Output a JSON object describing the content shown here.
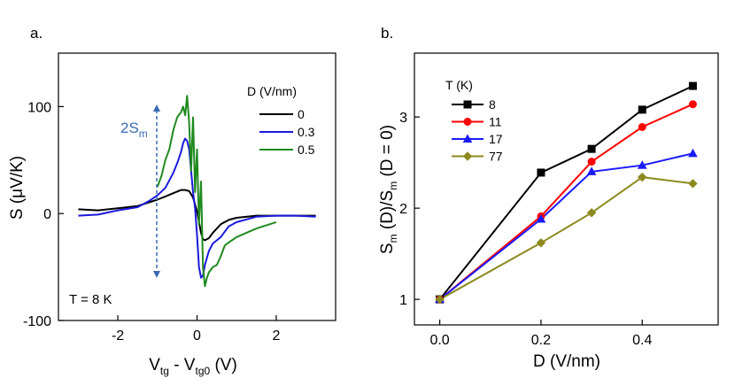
{
  "panel_a": {
    "label": "a.",
    "annotation_temp": "T = 8 K",
    "annotation_2sm_main": "2S",
    "annotation_2sm_sub": "m",
    "annotation_color": "#3a6ab5",
    "chart_data": {
      "type": "line",
      "title": "",
      "xlabel_main": "V",
      "xlabel_sub1": "tg",
      "xlabel_mid": " - V",
      "xlabel_sub2": "tg0",
      "xlabel_end": " (V)",
      "ylabel_main": "S (",
      "ylabel_mu": "μ",
      "ylabel_end": "V/K)",
      "xlim": [
        -3.5,
        3.5
      ],
      "ylim": [
        -100,
        150
      ],
      "xticks": [
        -2,
        0,
        2
      ],
      "xtick_labels": [
        "-2",
        "0",
        "2"
      ],
      "yticks": [
        -100,
        0,
        100
      ],
      "ytick_labels": [
        "-100",
        "0",
        "100"
      ],
      "legend_title": "D (V/nm)",
      "legend_position": "top-right",
      "series": [
        {
          "name": "0",
          "color": "#000000",
          "x": [
            -3.0,
            -2.5,
            -2.0,
            -1.5,
            -1.0,
            -0.8,
            -0.6,
            -0.4,
            -0.3,
            -0.2,
            -0.1,
            0.0,
            0.1,
            0.15,
            0.2,
            0.3,
            0.4,
            0.6,
            0.8,
            1.0,
            1.5,
            2.0,
            2.5,
            3.0
          ],
          "y": [
            4,
            3,
            5,
            7,
            13,
            16,
            19,
            22,
            22,
            21,
            15,
            2,
            -18,
            -24,
            -25,
            -23,
            -18,
            -10,
            -6,
            -4,
            -2,
            -2,
            -2,
            -2
          ]
        },
        {
          "name": "0.3",
          "color": "#1a1adc",
          "x": [
            -3.0,
            -2.5,
            -2.0,
            -1.5,
            -1.2,
            -1.0,
            -0.8,
            -0.6,
            -0.5,
            -0.4,
            -0.35,
            -0.3,
            -0.25,
            -0.2,
            -0.15,
            -0.1,
            -0.05,
            0.0,
            0.05,
            0.1,
            0.15,
            0.2,
            0.3,
            0.4,
            0.5,
            0.6,
            0.7,
            0.8,
            1.0,
            1.5,
            2.0,
            2.5,
            3.0
          ],
          "y": [
            -2,
            -1,
            3,
            6,
            12,
            17,
            24,
            38,
            47,
            58,
            66,
            70,
            68,
            60,
            40,
            20,
            5,
            -20,
            -50,
            -60,
            -58,
            -48,
            -35,
            -28,
            -25,
            -22,
            -17,
            -12,
            -8,
            -3,
            -2,
            -2,
            -3
          ]
        },
        {
          "name": "0.5",
          "color": "#1f8a1f",
          "x": [
            -1.0,
            -0.9,
            -0.8,
            -0.7,
            -0.6,
            -0.5,
            -0.4,
            -0.35,
            -0.3,
            -0.25,
            -0.2,
            -0.15,
            -0.1,
            -0.05,
            0.0,
            0.05,
            0.1,
            0.15,
            0.2,
            0.25,
            0.3,
            0.4,
            0.5,
            0.6,
            0.7,
            0.8,
            1.0,
            1.5,
            2.0
          ],
          "y": [
            25,
            35,
            50,
            60,
            78,
            90,
            95,
            100,
            92,
            110,
            85,
            40,
            90,
            20,
            60,
            -10,
            30,
            -50,
            -68,
            -60,
            -55,
            -50,
            -48,
            -40,
            -30,
            -27,
            -22,
            -14,
            -8
          ]
        }
      ]
    }
  },
  "panel_b": {
    "label": "b.",
    "chart_data": {
      "type": "line",
      "title": "",
      "xlabel": "D (V/nm)",
      "ylabel_1": "S",
      "ylabel_sub1": "m",
      "ylabel_2": " (D)/S",
      "ylabel_sub2": "m",
      "ylabel_3": " (D = 0)",
      "xlim": [
        -0.05,
        0.55
      ],
      "ylim": [
        0.72,
        3.7
      ],
      "xticks": [
        0.0,
        0.2,
        0.4
      ],
      "xtick_labels": [
        "0.0",
        "0.2",
        "0.4"
      ],
      "yticks": [
        1,
        2,
        3
      ],
      "ytick_labels": [
        "1",
        "2",
        "3"
      ],
      "legend_title": "T (K)",
      "legend_position": "top-left",
      "x": [
        0.0,
        0.2,
        0.3,
        0.4,
        0.5
      ],
      "series": [
        {
          "name": "8",
          "color": "#000000",
          "marker": "square",
          "values": [
            1.0,
            2.39,
            2.65,
            3.08,
            3.34
          ]
        },
        {
          "name": "11",
          "color": "#ff0000",
          "marker": "circle",
          "values": [
            1.0,
            1.91,
            2.51,
            2.89,
            3.14
          ]
        },
        {
          "name": "17",
          "color": "#1a1aff",
          "marker": "triangle",
          "values": [
            1.0,
            1.88,
            2.4,
            2.47,
            2.6
          ]
        },
        {
          "name": "77",
          "color": "#8c8a1e",
          "marker": "diamond",
          "values": [
            1.0,
            1.62,
            1.95,
            2.34,
            2.27
          ]
        }
      ]
    }
  }
}
